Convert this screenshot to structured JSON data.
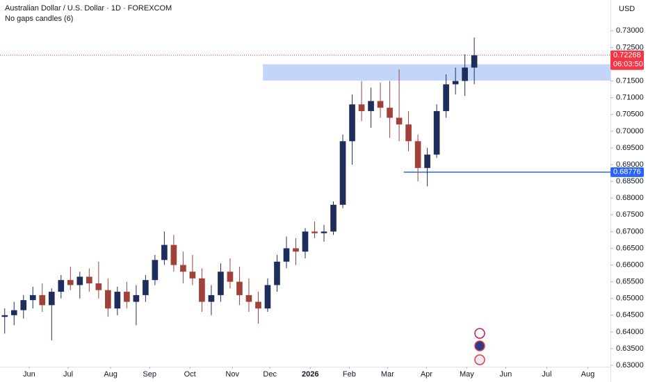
{
  "chart_data": {
    "type": "candlestick",
    "title": "Australian Dollar / U.S. Dollar · 1D · FOREXCOM",
    "subtitle": "No gaps candles (6)",
    "currency": "USD",
    "open": [
      0.6445,
      0.645,
      0.6465,
      0.6495,
      0.651,
      0.648,
      0.652,
      0.6555,
      0.654,
      0.6565,
      0.6545,
      0.6525,
      0.647,
      0.652,
      0.649,
      0.651,
      0.6555,
      0.6615,
      0.666,
      0.66,
      0.658,
      0.656,
      0.649,
      0.651,
      0.658,
      0.655,
      0.651,
      0.649,
      0.647,
      0.654,
      0.661,
      0.665,
      0.664,
      0.67,
      0.6695,
      0.67,
      0.678,
      0.697,
      0.708,
      0.706,
      0.709,
      0.707,
      0.704,
      0.702,
      0.697,
      0.689,
      0.693,
      0.706,
      0.714,
      0.715,
      0.719
    ],
    "high": [
      0.647,
      0.649,
      0.651,
      0.6535,
      0.6545,
      0.653,
      0.657,
      0.6595,
      0.658,
      0.659,
      0.661,
      0.656,
      0.6535,
      0.655,
      0.654,
      0.657,
      0.663,
      0.67,
      0.669,
      0.664,
      0.663,
      0.659,
      0.654,
      0.6605,
      0.662,
      0.6595,
      0.656,
      0.652,
      0.656,
      0.663,
      0.6685,
      0.668,
      0.671,
      0.673,
      0.672,
      0.679,
      0.699,
      0.711,
      0.715,
      0.713,
      0.7145,
      0.715,
      0.7185,
      0.706,
      0.699,
      0.695,
      0.708,
      0.717,
      0.719,
      0.723,
      0.728
    ],
    "low": [
      0.6395,
      0.642,
      0.644,
      0.647,
      0.646,
      0.6375,
      0.65,
      0.6525,
      0.65,
      0.652,
      0.65,
      0.6445,
      0.645,
      0.647,
      0.642,
      0.649,
      0.654,
      0.66,
      0.658,
      0.6545,
      0.654,
      0.646,
      0.645,
      0.649,
      0.653,
      0.648,
      0.646,
      0.6425,
      0.646,
      0.652,
      0.659,
      0.66,
      0.662,
      0.668,
      0.667,
      0.669,
      0.677,
      0.69,
      0.703,
      0.701,
      0.704,
      0.698,
      0.697,
      0.694,
      0.685,
      0.6835,
      0.692,
      0.704,
      0.711,
      0.7105,
      0.714
    ],
    "close": [
      0.645,
      0.6465,
      0.6495,
      0.651,
      0.648,
      0.652,
      0.6555,
      0.654,
      0.6565,
      0.6545,
      0.6525,
      0.647,
      0.652,
      0.649,
      0.651,
      0.6555,
      0.6615,
      0.666,
      0.66,
      0.658,
      0.656,
      0.649,
      0.651,
      0.658,
      0.655,
      0.651,
      0.649,
      0.647,
      0.654,
      0.661,
      0.665,
      0.664,
      0.67,
      0.6695,
      0.67,
      0.678,
      0.697,
      0.708,
      0.706,
      0.709,
      0.707,
      0.704,
      0.702,
      0.697,
      0.689,
      0.693,
      0.706,
      0.714,
      0.715,
      0.719,
      0.72268
    ],
    "up_color": "#1f2d5c",
    "down_color": "#a0413a",
    "xlim": [
      -0.5,
      64.5
    ],
    "xticks": [
      {
        "value": 2.6,
        "label": "Jun"
      },
      {
        "value": 6.76,
        "label": "Jul"
      },
      {
        "value": 11.28,
        "label": "Aug"
      },
      {
        "value": 15.43,
        "label": "Sep"
      },
      {
        "value": 19.72,
        "label": "Oct"
      },
      {
        "value": 24.24,
        "label": "Nov"
      },
      {
        "value": 28.24,
        "label": "Dec"
      },
      {
        "value": 32.54,
        "label": "2026"
      },
      {
        "value": 36.69,
        "label": "Feb"
      },
      {
        "value": 40.76,
        "label": "Mar"
      },
      {
        "value": 44.91,
        "label": "Apr"
      },
      {
        "value": 49.2,
        "label": "May"
      },
      {
        "value": 53.35,
        "label": "Jun"
      },
      {
        "value": 57.72,
        "label": "Jul"
      },
      {
        "value": 62.09,
        "label": "Aug"
      }
    ],
    "ylim": [
      0.6296,
      0.7392
    ],
    "yticks": [
      {
        "value": 0.63,
        "label": "0.63000"
      },
      {
        "value": 0.635,
        "label": "0.63500"
      },
      {
        "value": 0.64,
        "label": "0.64000"
      },
      {
        "value": 0.645,
        "label": "0.64500"
      },
      {
        "value": 0.65,
        "label": "0.65000"
      },
      {
        "value": 0.655,
        "label": "0.65500"
      },
      {
        "value": 0.66,
        "label": "0.66000"
      },
      {
        "value": 0.665,
        "label": "0.66500"
      },
      {
        "value": 0.67,
        "label": "0.67000"
      },
      {
        "value": 0.675,
        "label": "0.67500"
      },
      {
        "value": 0.68,
        "label": "0.68000"
      },
      {
        "value": 0.685,
        "label": "0.68500"
      },
      {
        "value": 0.69,
        "label": "0.69000"
      },
      {
        "value": 0.695,
        "label": "0.69500"
      },
      {
        "value": 0.7,
        "label": "0.70000"
      },
      {
        "value": 0.705,
        "label": "0.70500"
      },
      {
        "value": 0.71,
        "label": "0.71000"
      },
      {
        "value": 0.715,
        "label": "0.71500"
      },
      {
        "value": 0.725,
        "label": "0.72500"
      },
      {
        "value": 0.73,
        "label": "0.73000"
      }
    ],
    "grid": false,
    "zone": {
      "low": 0.7151,
      "high": 0.72,
      "start": 27.5,
      "color": "#bcd0f7"
    },
    "level": {
      "value": 0.68776,
      "start": 42.5,
      "color": "#2962ff"
    },
    "last_price_color": "#f23645",
    "countdown": "06:03:50"
  }
}
